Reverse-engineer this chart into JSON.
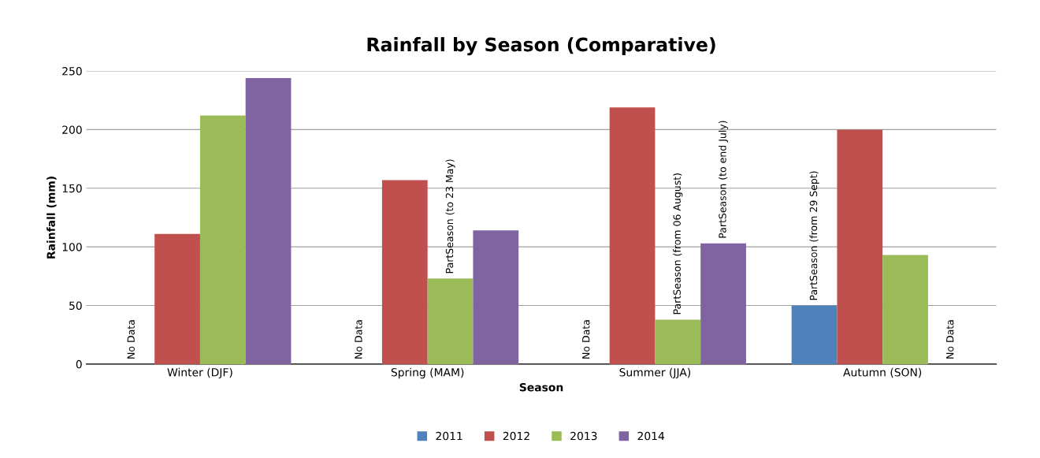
{
  "chart_data": {
    "type": "bar",
    "title": "Rainfall by Season (Comparative)",
    "xlabel": "Season",
    "ylabel": "Rainfall (mm)",
    "categories": [
      "Winter (DJF)",
      "Spring (MAM)",
      "Summer (JJA)",
      "Autumn (SON)"
    ],
    "series": [
      {
        "name": "2011",
        "color": "#4f81bd",
        "values": [
          null,
          null,
          null,
          50
        ],
        "value_labels": [
          "No Data",
          "No Data",
          "No Data",
          "PartSeason (from 29 Sept)"
        ]
      },
      {
        "name": "2012",
        "color": "#c0504d",
        "values": [
          111,
          157,
          219,
          200
        ]
      },
      {
        "name": "2013",
        "color": "#9bbb59",
        "values": [
          212,
          73,
          38,
          93
        ],
        "value_labels": [
          null,
          "PartSeason (to 23 May)",
          "PartSeason (from 06 August)",
          null
        ]
      },
      {
        "name": "2014",
        "color": "#8064a2",
        "values": [
          244,
          114,
          103,
          null
        ],
        "value_labels": [
          null,
          null,
          "PartSeason (to end July)",
          "No Data"
        ]
      }
    ],
    "ylim": [
      0,
      250
    ],
    "yticks": [
      0,
      50,
      100,
      150,
      200,
      250
    ],
    "grid": "y",
    "legend": "bottom"
  }
}
